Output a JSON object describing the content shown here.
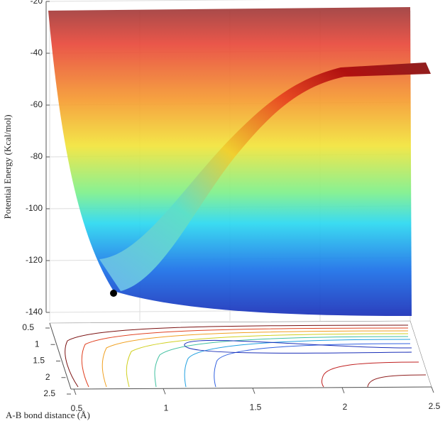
{
  "chart_data": {
    "type": "surface",
    "zlabel": "Potential Energy (Kcal/mol)",
    "xlabel": "A-B bond distance (Å)",
    "zlim": [
      -140,
      -20
    ],
    "zticks": [
      -20,
      -40,
      -60,
      -80,
      -100,
      -120,
      -140
    ],
    "xlim": [
      0.5,
      2.5
    ],
    "xticks": [
      0.5,
      1,
      1.5,
      2,
      2.5
    ],
    "ylim": [
      0.5,
      2.5
    ],
    "yticks": [
      0.5,
      1,
      1.5,
      2,
      2.5
    ],
    "grid": true
  }
}
